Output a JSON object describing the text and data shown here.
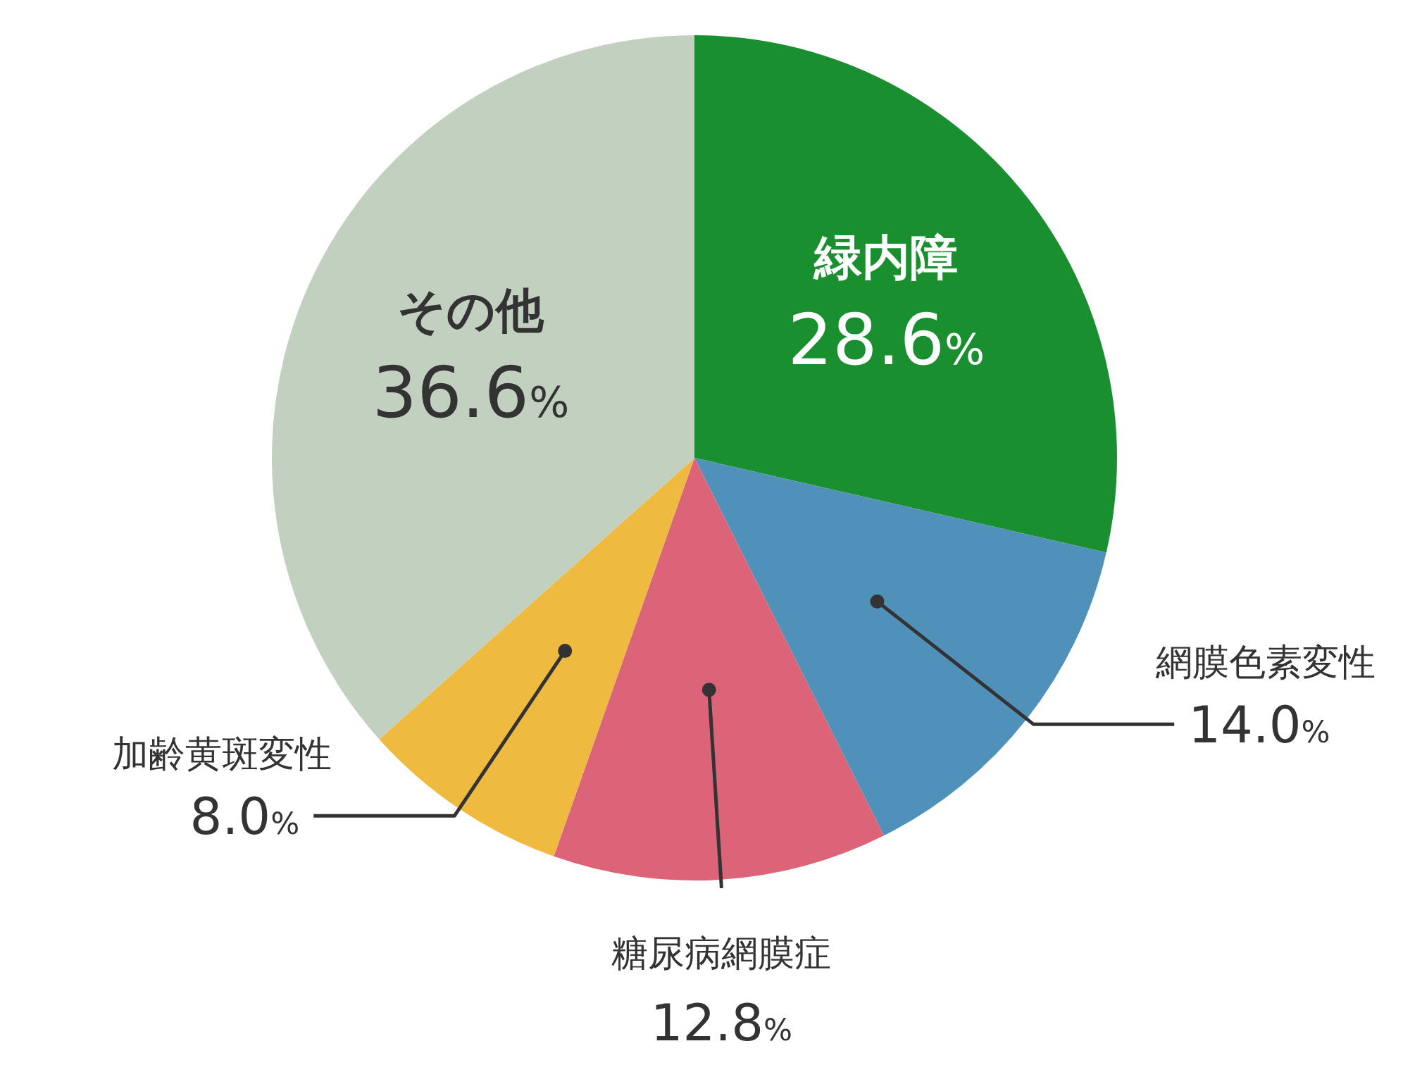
{
  "chart_data": {
    "type": "pie",
    "categories": [
      "緑内障",
      "網膜色素変性",
      "糖尿病網膜症",
      "加齢黄斑変性",
      "その他"
    ],
    "values": [
      28.6,
      14.0,
      12.8,
      8.0,
      36.6
    ],
    "colors": [
      "#1a8f30",
      "#4f91b8",
      "#dc6478",
      "#eeba40",
      "#c2d1bf"
    ],
    "value_labels": [
      "28.6%",
      "14.0%",
      "12.8%",
      "8.0%",
      "36.6%"
    ]
  }
}
